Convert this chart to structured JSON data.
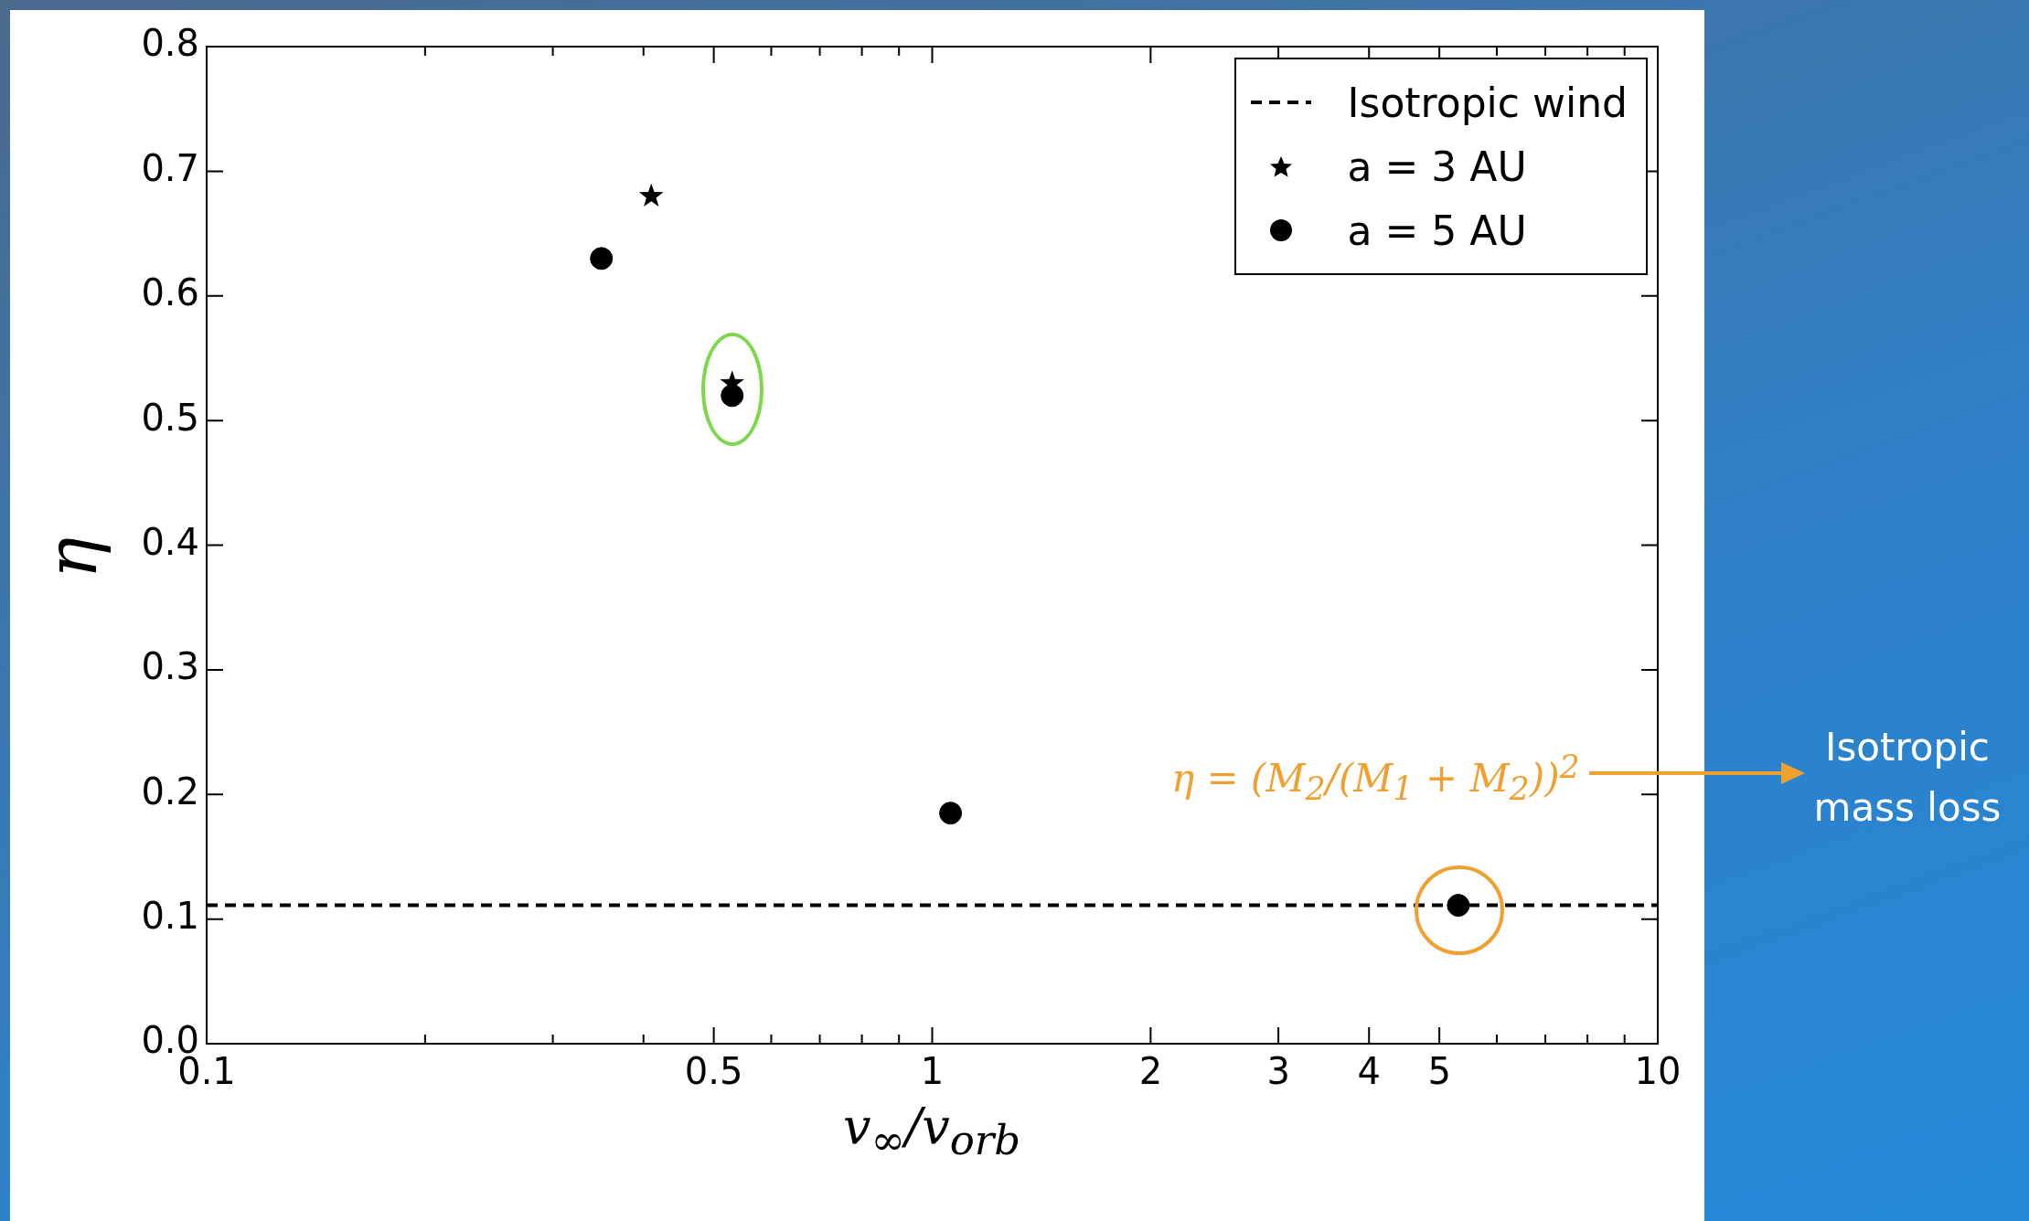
{
  "chart_data": {
    "type": "scatter",
    "xlabel": "v$_{∞}$/v$_{orb}$",
    "ylabel": "η",
    "log": "x",
    "xlim": [
      0.1,
      10
    ],
    "ylim": [
      0,
      0.8
    ],
    "xticks": [
      0.1,
      {
        "value": 0.2,
        "label": null
      },
      {
        "value": 0.3,
        "label": null
      },
      {
        "value": 0.4,
        "label": null
      },
      0.5,
      {
        "value": 0.6,
        "label": null
      },
      {
        "value": 0.7,
        "label": null
      },
      {
        "value": 0.8,
        "label": null
      },
      {
        "value": 0.9,
        "label": null
      },
      1,
      2,
      3,
      4,
      5,
      {
        "value": 6,
        "label": null
      },
      {
        "value": 7,
        "label": null
      },
      {
        "value": 8,
        "label": null
      },
      {
        "value": 9,
        "label": null
      },
      10
    ],
    "yticks": [
      {
        "value": 0,
        "label": "0.0"
      },
      0.1,
      0.2,
      0.3,
      0.4,
      0.5,
      0.6,
      0.7,
      0.8
    ],
    "legend": "top right",
    "ref_lines": [
      {
        "axis": "y",
        "value": 0.111,
        "label": "Isotropic wind",
        "color": "#000000",
        "line_style": "dashed"
      }
    ],
    "series": [
      {
        "name": "a = 3 AU",
        "color": "#000000",
        "marker": "star",
        "x": [
          0.41,
          0.53
        ],
        "values": [
          0.68,
          0.53
        ]
      },
      {
        "name": "a = 5 AU",
        "color": "#000000",
        "marker": "circle",
        "x": [
          0.35,
          0.53,
          1.06,
          5.31
        ],
        "values": [
          0.63,
          0.52,
          0.185,
          0.111
        ]
      }
    ],
    "annotations": [
      "η = (M$_{2}$/(M$_{1}$ + M$_{2}$))$^{2}$",
      "Isotropic mass loss"
    ]
  }
}
